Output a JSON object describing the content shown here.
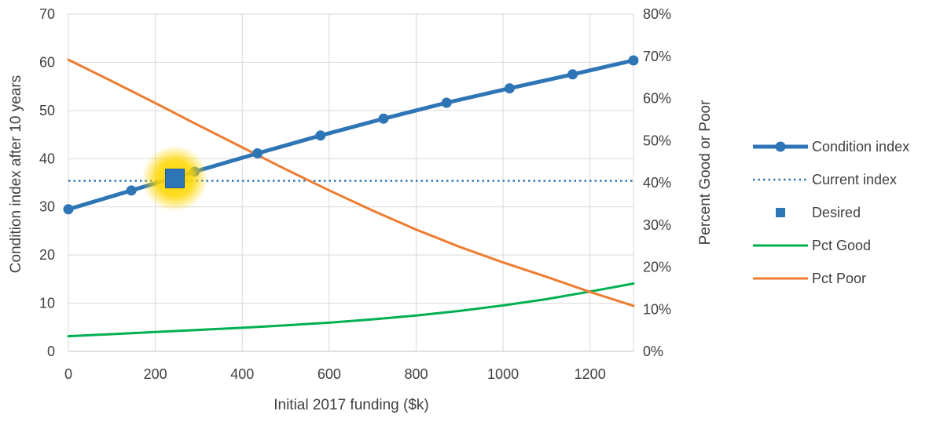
{
  "chart_data": {
    "type": "line",
    "title": "",
    "xlabel": "Initial 2017 funding ($k)",
    "ylabel": "Condition index after 10 years",
    "y2label": "Percent Good or Poor",
    "xlim": [
      0,
      1300
    ],
    "ylim": [
      0,
      70
    ],
    "y2lim": [
      0,
      0.8
    ],
    "x_ticks": [
      "0",
      "200",
      "400",
      "600",
      "800",
      "1000",
      "1200"
    ],
    "x_tick_values": [
      0,
      200,
      400,
      600,
      800,
      1000,
      1200
    ],
    "y_ticks": [
      "0",
      "10",
      "20",
      "30",
      "40",
      "50",
      "60",
      "70"
    ],
    "y_tick_values": [
      0,
      10,
      20,
      30,
      40,
      50,
      60,
      70
    ],
    "y2_ticks": [
      "0%",
      "10%",
      "20%",
      "30%",
      "40%",
      "50%",
      "60%",
      "70%",
      "80%"
    ],
    "y2_tick_values": [
      0,
      0.1,
      0.2,
      0.3,
      0.4,
      0.5,
      0.6,
      0.7,
      0.8
    ],
    "grid": true,
    "legend_position": "right",
    "series": [
      {
        "name": "Condition index",
        "axis": "left",
        "style": "line-markers",
        "color": "#2e75b6",
        "x": [
          0,
          145,
          290,
          435,
          580,
          725,
          870,
          1015,
          1160,
          1300
        ],
        "y": [
          29.5,
          33.4,
          37.3,
          41.1,
          44.8,
          48.3,
          51.6,
          54.6,
          57.5,
          60.4
        ]
      },
      {
        "name": "Current index",
        "axis": "left",
        "style": "dotted",
        "color": "#2e75b6",
        "x": [
          0,
          1300
        ],
        "y": [
          35.4,
          35.4
        ]
      },
      {
        "name": "Desired",
        "axis": "left",
        "style": "marker",
        "color": "#2e75b6",
        "highlight_color": "#ffd700",
        "x": [
          245
        ],
        "y": [
          35.9
        ]
      },
      {
        "name": "Pct Good",
        "axis": "right",
        "style": "line",
        "color": "#00b050",
        "x": [
          0,
          100,
          200,
          300,
          400,
          500,
          600,
          700,
          800,
          900,
          1000,
          1100,
          1200,
          1300
        ],
        "y": [
          0.036,
          0.041,
          0.046,
          0.051,
          0.056,
          0.062,
          0.068,
          0.076,
          0.085,
          0.096,
          0.109,
          0.124,
          0.142,
          0.161
        ]
      },
      {
        "name": "Pct Poor",
        "axis": "right",
        "style": "line",
        "color": "#ed7d31",
        "x": [
          0,
          100,
          200,
          300,
          400,
          500,
          600,
          700,
          800,
          900,
          1000,
          1100,
          1200,
          1300
        ],
        "y": [
          0.692,
          0.641,
          0.589,
          0.536,
          0.484,
          0.432,
          0.382,
          0.334,
          0.289,
          0.248,
          0.211,
          0.177,
          0.141,
          0.108
        ]
      }
    ]
  }
}
